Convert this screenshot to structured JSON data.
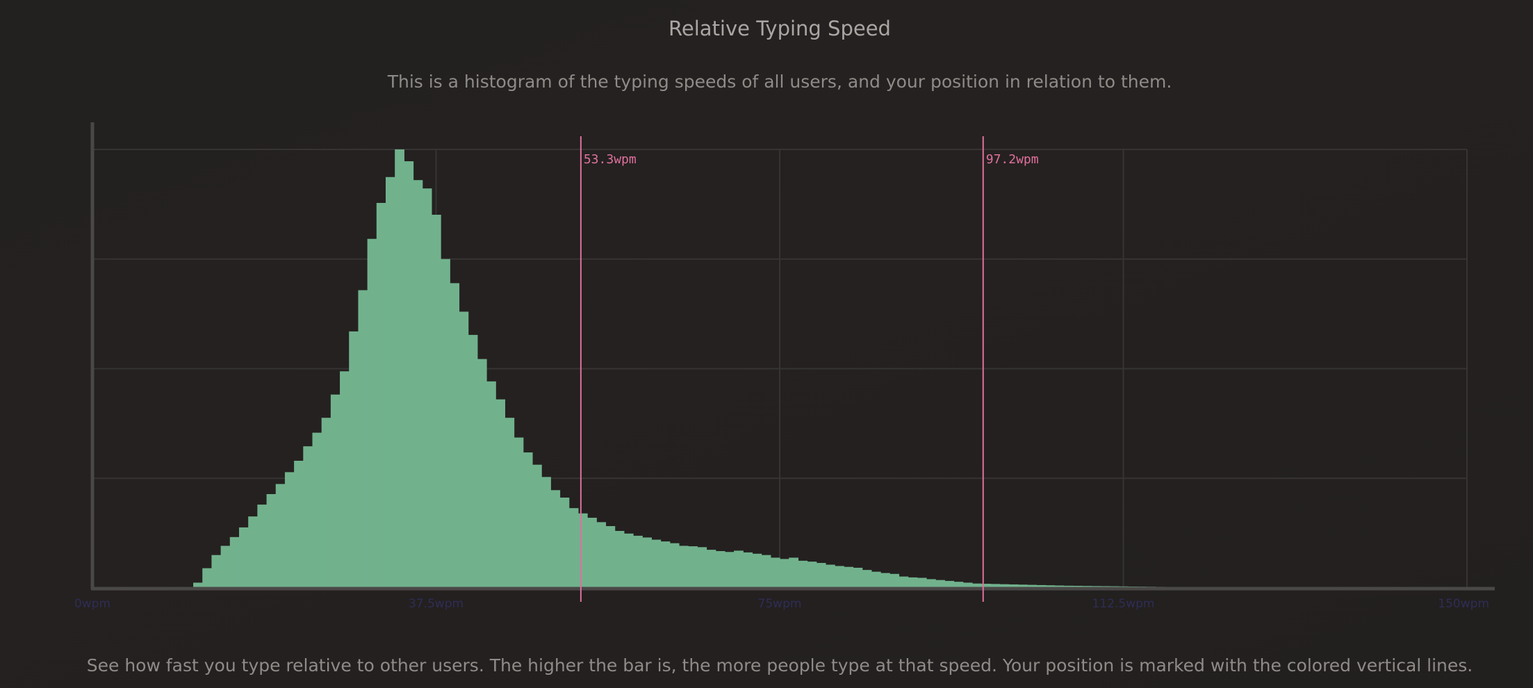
{
  "header": {
    "title": "Relative Typing Speed",
    "subtitle": "This is a histogram of the typing speeds of all users, and your position in relation to them."
  },
  "footer": {
    "caption": "See how fast you type relative to other users. The higher the bar is, the more people type at that speed. Your position is marked with the colored vertical lines."
  },
  "colors": {
    "bar": "#71b28d",
    "marker": "#e0719e",
    "grid": "#363433",
    "axis": "#4a4847",
    "tick_label": "#2e2d55"
  },
  "chart_data": {
    "type": "bar",
    "title": "",
    "xlabel": "",
    "ylabel": "",
    "x_unit": "wpm",
    "xlim": [
      0,
      150
    ],
    "ylim": [
      0,
      100
    ],
    "bin_width": 1,
    "bin_start": 0,
    "grid": true,
    "y_gridlines": [
      25,
      50,
      75,
      100
    ],
    "x_ticks": [
      {
        "value": 0,
        "label": "0wpm"
      },
      {
        "value": 37.5,
        "label": "37.5wpm"
      },
      {
        "value": 75,
        "label": "75wpm"
      },
      {
        "value": 112.5,
        "label": "112.5wpm"
      },
      {
        "value": 150,
        "label": "150wpm"
      }
    ],
    "values": [
      0,
      0,
      0,
      0,
      0,
      0,
      0,
      0,
      0,
      0,
      0,
      1.2,
      4.5,
      7.5,
      9.6,
      11.6,
      13.8,
      16.3,
      19.0,
      21.4,
      23.7,
      26.4,
      29.0,
      32.3,
      35.4,
      38.8,
      44.1,
      49.4,
      58.5,
      67.9,
      79.6,
      87.8,
      93.7,
      100,
      97.3,
      93.0,
      91.1,
      85.1,
      75.0,
      69.5,
      63.0,
      57.7,
      52.2,
      47.1,
      43.0,
      38.8,
      34.3,
      30.9,
      28.1,
      25.3,
      22.3,
      20.6,
      18.2,
      17.0,
      16.0,
      15.0,
      14.1,
      13.0,
      12.4,
      11.9,
      11.5,
      11.0,
      10.6,
      10.2,
      9.6,
      9.5,
      9.3,
      8.7,
      8.4,
      8.2,
      8.5,
      8.1,
      7.8,
      7.5,
      6.9,
      6.6,
      6.9,
      6.2,
      6.0,
      5.7,
      5.3,
      5.0,
      4.8,
      4.6,
      4.1,
      3.7,
      3.4,
      3.2,
      2.6,
      2.4,
      2.3,
      2.0,
      1.8,
      1.6,
      1.4,
      1.2,
      1.0,
      0.95,
      0.9,
      0.85,
      0.8,
      0.75,
      0.7,
      0.65,
      0.6,
      0.55,
      0.5,
      0.48,
      0.45,
      0.42,
      0.4,
      0.38,
      0.35,
      0.32,
      0.3,
      0.28,
      0.25,
      0.22,
      0.2,
      0.18,
      0.15,
      0.12,
      0.1,
      0.08,
      0.06,
      0.04,
      0.02,
      0.01
    ],
    "markers": [
      {
        "value": 53.3,
        "label": "53.3wpm"
      },
      {
        "value": 97.2,
        "label": "97.2wpm"
      }
    ]
  }
}
